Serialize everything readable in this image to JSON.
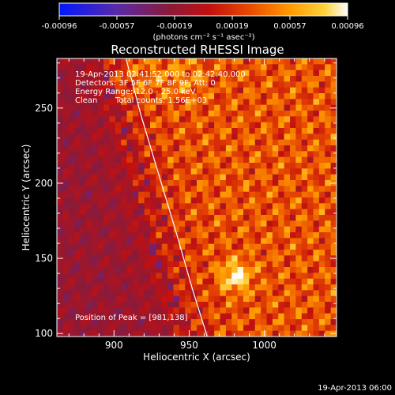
{
  "chart_data": {
    "type": "heatmap",
    "title": "Reconstructed RHESSI Image",
    "xlabel": "Heliocentric X (arcsec)",
    "ylabel": "Heliocentric Y (arcsec)",
    "xlim": [
      862,
      1048
    ],
    "ylim": [
      98,
      283
    ],
    "xticks": [
      900,
      950,
      1000
    ],
    "yticks": [
      100,
      150,
      200,
      250
    ],
    "colormap": [
      "#0018ff",
      "#5a2aa8",
      "#8a1a3a",
      "#c21010",
      "#e84a00",
      "#ff9a00",
      "#ffd23a",
      "#ffffff"
    ],
    "colorbar": {
      "range": [
        -0.00096,
        0.00096
      ],
      "ticks": [
        "-0.00096",
        "-0.00057",
        "-0.00019",
        "0.00019",
        "0.00057",
        "0.00096"
      ],
      "units": "(photons cm⁻² s⁻¹ asec⁻²)"
    },
    "annotations": {
      "time_range": "19-Apr-2013 02:41:52.000 to 02:42:40.000",
      "detectors": "Detectors: 3F 5F 6F 7F 8F 9F, Att: 0",
      "energy": "Energy Range: 12.0 - 25.0 keV",
      "method": "Clean",
      "counts": "Total counts: 1.56E+03",
      "peak": "Position of Peak = [981,138]"
    },
    "timestamp": "19-Apr-2013 06:00",
    "peak": {
      "x": 981,
      "y": 138
    },
    "limb": [
      [
        962,
        98
      ],
      [
        952,
        130
      ],
      [
        942,
        165
      ],
      [
        930,
        205
      ],
      [
        918,
        245
      ],
      [
        908,
        283
      ]
    ]
  }
}
